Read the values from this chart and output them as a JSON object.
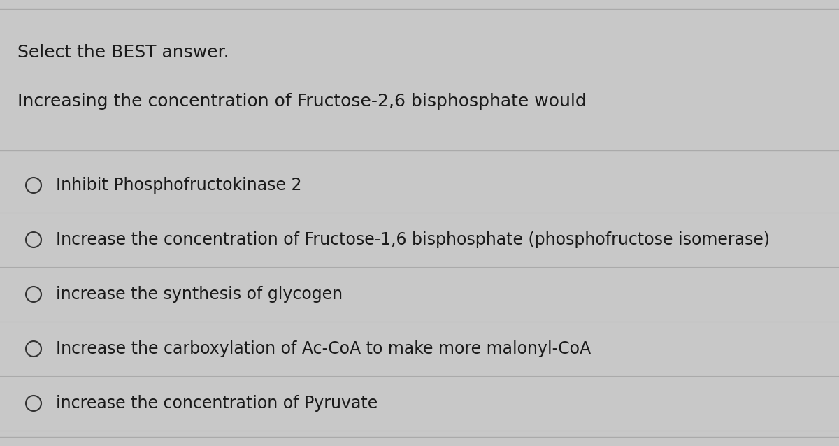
{
  "title_line1": "Select the BEST answer.",
  "title_line2": "Increasing the concentration of Fructose-2,6 bisphosphate would",
  "options": [
    "Inhibit Phosphofructokinase 2",
    "Increase the concentration of Fructose-1,6 bisphosphate (phosphofructose isomerase)",
    "increase the synthesis of glycogen",
    "Increase the carboxylation of Ac-CoA to make more malonyl-CoA",
    "increase the concentration of Pyruvate"
  ],
  "bg_color": "#c8c8c8",
  "content_bg": "#d4d2d2",
  "line_color": "#aaaaaa",
  "text_color": "#1a1a1a",
  "title_fontsize": 18,
  "option_fontsize": 17,
  "circle_color": "#333333"
}
